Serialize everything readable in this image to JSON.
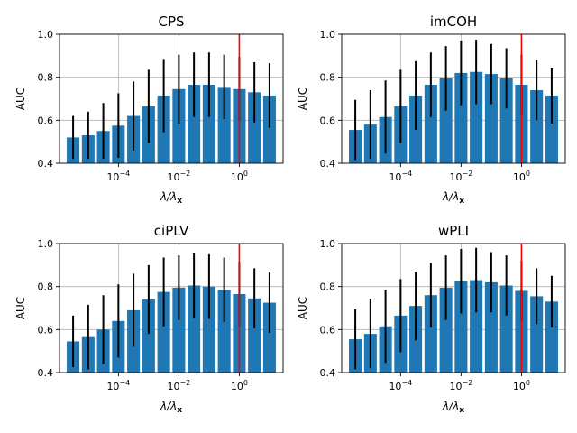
{
  "colors": {
    "bar": "#1f77b4",
    "error": "#000000",
    "marker": "#ff0000",
    "grid": "#b0b0b0"
  },
  "chart_data": [
    {
      "type": "bar",
      "title": "CPS",
      "xlabel": "λ/λ",
      "xlabel_sub": "x",
      "ylabel": "AUC",
      "x_scale": "log",
      "x_ticks": [
        {
          "base": "10",
          "exp": "−4",
          "log10": -4
        },
        {
          "base": "10",
          "exp": "−2",
          "log10": -2
        },
        {
          "base": "10",
          "exp": "0",
          "log10": 0
        }
      ],
      "y_ticks": [
        "0.4",
        "0.6",
        "0.8",
        "1.0"
      ],
      "ylim": [
        0.4,
        1.0
      ],
      "grid": true,
      "marker_log10": 0,
      "log10_x": [
        -5.5,
        -5,
        -4.5,
        -4,
        -3.5,
        -3,
        -2.5,
        -2,
        -1.5,
        -1,
        -0.5,
        0,
        0.5,
        1
      ],
      "values": [
        0.52,
        0.53,
        0.55,
        0.575,
        0.62,
        0.665,
        0.715,
        0.745,
        0.765,
        0.765,
        0.755,
        0.745,
        0.73,
        0.715
      ],
      "errors": [
        0.1,
        0.11,
        0.13,
        0.15,
        0.16,
        0.17,
        0.17,
        0.16,
        0.15,
        0.15,
        0.15,
        0.15,
        0.14,
        0.15
      ]
    },
    {
      "type": "bar",
      "title": "imCOH",
      "xlabel": "λ/λ",
      "xlabel_sub": "x",
      "ylabel": "AUC",
      "x_scale": "log",
      "x_ticks": [
        {
          "base": "10",
          "exp": "−4",
          "log10": -4
        },
        {
          "base": "10",
          "exp": "−2",
          "log10": -2
        },
        {
          "base": "10",
          "exp": "0",
          "log10": 0
        }
      ],
      "y_ticks": [
        "0.4",
        "0.6",
        "0.8",
        "1.0"
      ],
      "ylim": [
        0.4,
        1.0
      ],
      "grid": true,
      "marker_log10": 0,
      "log10_x": [
        -5.5,
        -5,
        -4.5,
        -4,
        -3.5,
        -3,
        -2.5,
        -2,
        -1.5,
        -1,
        -0.5,
        0,
        0.5,
        1
      ],
      "values": [
        0.555,
        0.58,
        0.615,
        0.665,
        0.715,
        0.765,
        0.795,
        0.82,
        0.825,
        0.815,
        0.795,
        0.765,
        0.74,
        0.715
      ],
      "errors": [
        0.14,
        0.16,
        0.17,
        0.17,
        0.16,
        0.15,
        0.15,
        0.15,
        0.15,
        0.14,
        0.14,
        0.14,
        0.14,
        0.13
      ]
    },
    {
      "type": "bar",
      "title": "ciPLV",
      "xlabel": "λ/λ",
      "xlabel_sub": "x",
      "ylabel": "AUC",
      "x_scale": "log",
      "x_ticks": [
        {
          "base": "10",
          "exp": "−4",
          "log10": -4
        },
        {
          "base": "10",
          "exp": "−2",
          "log10": -2
        },
        {
          "base": "10",
          "exp": "0",
          "log10": 0
        }
      ],
      "y_ticks": [
        "0.4",
        "0.6",
        "0.8",
        "1.0"
      ],
      "ylim": [
        0.4,
        1.0
      ],
      "grid": true,
      "marker_log10": 0,
      "log10_x": [
        -5.5,
        -5,
        -4.5,
        -4,
        -3.5,
        -3,
        -2.5,
        -2,
        -1.5,
        -1,
        -0.5,
        0,
        0.5,
        1
      ],
      "values": [
        0.545,
        0.565,
        0.6,
        0.64,
        0.69,
        0.74,
        0.775,
        0.795,
        0.805,
        0.8,
        0.785,
        0.765,
        0.745,
        0.725
      ],
      "errors": [
        0.12,
        0.15,
        0.16,
        0.17,
        0.17,
        0.16,
        0.16,
        0.15,
        0.15,
        0.15,
        0.15,
        0.15,
        0.14,
        0.14
      ]
    },
    {
      "type": "bar",
      "title": "wPLI",
      "xlabel": "λ/λ",
      "xlabel_sub": "x",
      "ylabel": "AUC",
      "x_scale": "log",
      "x_ticks": [
        {
          "base": "10",
          "exp": "−4",
          "log10": -4
        },
        {
          "base": "10",
          "exp": "−2",
          "log10": -2
        },
        {
          "base": "10",
          "exp": "0",
          "log10": 0
        }
      ],
      "y_ticks": [
        "0.4",
        "0.6",
        "0.8",
        "1.0"
      ],
      "ylim": [
        0.4,
        1.0
      ],
      "grid": true,
      "marker_log10": 0,
      "log10_x": [
        -5.5,
        -5,
        -4.5,
        -4,
        -3.5,
        -3,
        -2.5,
        -2,
        -1.5,
        -1,
        -0.5,
        0,
        0.5,
        1
      ],
      "values": [
        0.555,
        0.58,
        0.615,
        0.665,
        0.71,
        0.76,
        0.795,
        0.825,
        0.83,
        0.82,
        0.805,
        0.78,
        0.755,
        0.73
      ],
      "errors": [
        0.14,
        0.16,
        0.17,
        0.17,
        0.16,
        0.15,
        0.15,
        0.15,
        0.15,
        0.14,
        0.14,
        0.14,
        0.13,
        0.12
      ]
    }
  ]
}
